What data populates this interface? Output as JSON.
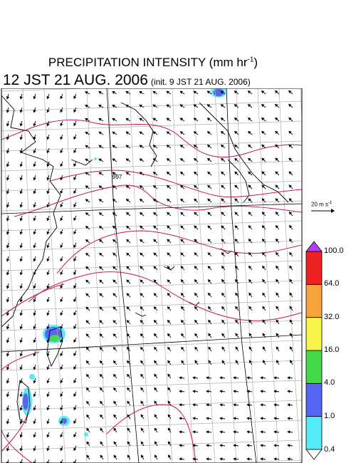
{
  "title": {
    "text": "PRECIPITATION INTENSITY (mm hr",
    "exponent": "-1",
    "close": ")"
  },
  "subtitle": {
    "main": "12 JST 21 AUG. 2006",
    "init": "(init. 9 JST 21 AUG. 2006)"
  },
  "map": {
    "isobar_label": "997",
    "wind_reference": {
      "label": "20 m s",
      "exponent": "-1"
    },
    "colors": {
      "land_outline": "#000000",
      "grid": "#b0b0b0",
      "isobar": "#c8145a",
      "frame": "#000000"
    }
  },
  "colorbar": {
    "levels": [
      "0.4",
      "1.0",
      "4.0",
      "16.0",
      "32.0",
      "64.0",
      "100.0"
    ],
    "colors": [
      "#55ecf9",
      "#5566f4",
      "#45d848",
      "#f7f54a",
      "#f7a33d",
      "#ee2222"
    ],
    "under_color": "#ffffff",
    "over_color": "#b63ff2"
  }
}
